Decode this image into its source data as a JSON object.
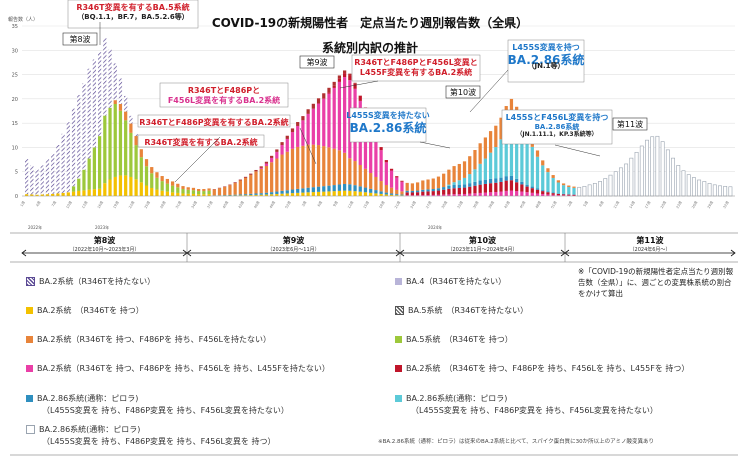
{
  "header": {
    "title": "COVID-19の新規陽性者　定点当たり週別報告数（全県）",
    "subtitle": "系統別内訳の推計",
    "ylabel": "報告数（人）"
  },
  "chart_data": {
    "type": "bar",
    "ylabel": "報告数（人）",
    "ylim": [
      0,
      35
    ],
    "yticks": [
      0,
      5,
      10,
      15,
      20,
      25,
      30,
      35
    ],
    "year_labels": [
      "2022年",
      "2023年",
      "2024年"
    ],
    "waves": [
      {
        "label": "第8波",
        "sub": "（2022年10月～2023年3月）"
      },
      {
        "label": "第9波",
        "sub": "（2023年6月～11月）"
      },
      {
        "label": "第10波",
        "sub": "（2023年11月～2024年4月）"
      },
      {
        "label": "第11波",
        "sub": "（2024年6月～）"
      }
    ],
    "wave_markers": [
      "第8波",
      "第9波",
      "第10波",
      "第11波"
    ],
    "totals": [
      7.6,
      6.3,
      5.5,
      6.3,
      7.6,
      8.7,
      10.5,
      12.8,
      15.2,
      18.0,
      20.8,
      23.2,
      26.2,
      28.1,
      29.6,
      32.5,
      30.2,
      27.3,
      24.2,
      20.6,
      16.5,
      12.8,
      9.4,
      7.2,
      5.5,
      4.4,
      3.6,
      3.0,
      2.5,
      2.1,
      1.7,
      1.5,
      1.4,
      1.2,
      1.2,
      1.3,
      1.5,
      1.8,
      2.1,
      2.5,
      3.0,
      3.6,
      4.2,
      4.9,
      5.7,
      6.5,
      7.5,
      8.8,
      10.2,
      11.8,
      13.2,
      14.8,
      16.2,
      17.5,
      19.0,
      20.2,
      21.4,
      22.5,
      23.7,
      25.0,
      26.4,
      27.5,
      26.8,
      24.8,
      22.0,
      19.3,
      16.3,
      13.5,
      10.6,
      7.8,
      5.9,
      4.3,
      3.3,
      2.7,
      2.6,
      2.8,
      3.2,
      3.4,
      3.6,
      4.0,
      4.6,
      5.4,
      6.1,
      6.5,
      7.0,
      8.0,
      9.2,
      10.5,
      11.6,
      12.8,
      13.8,
      15.3,
      17.5,
      18.8,
      17.2,
      15.3,
      13.1,
      10.9,
      8.7,
      6.8,
      5.3,
      4.0,
      3.0,
      2.4,
      2.0,
      1.8,
      1.8,
      2.0,
      2.3,
      2.6,
      3.0,
      3.6,
      4.3,
      5.0,
      5.8,
      6.6,
      7.8,
      9.0,
      10.3,
      11.5,
      12.2,
      12.3,
      11.2,
      9.5,
      7.8,
      6.3,
      5.2,
      4.4,
      3.8,
      3.3,
      3.0,
      2.6,
      2.3,
      2.1,
      2.0,
      1.9
    ],
    "categories": [
      "BA.2系統（R346Tを持たない）",
      "BA.4（R346Tを持たない）",
      "BA.2系統（R346Tを持つ）",
      "BA.5系統（R346Tを持たない）",
      "BA.2系統（R346Tを持つ、F486Pを持ち、F456Lを持たない）",
      "BA.5系統（R346Tを持つ）",
      "BA.2系統（R346Tを持つ、F486Pを持ち、F456Lを持ち、L455Fを持たない）",
      "BA.2系統（R346Tを持つ、F486Pを持ち、F456Lを持ち、L455Fを持つ）",
      "BA.2.86系統(通称：ピロラ)（L455S変異を持ち、F486P変異を持ち、F456L変異を持たない）",
      "BA.2.86系統(通称：ピロラ)（L455S変異を持ち、F486P変異を持ち、F456L変異を持たない）",
      "BA.2.86系統(通称：ピロラ)（L455S変異を持ち、F486P変異を持ち、F456L変異を持つ）"
    ]
  },
  "colors": {
    "hatch_purple": "#5b4a94",
    "ba4": "#b8b4d8",
    "ba2_r346t": "#f3c100",
    "ba5_hatch": "#555555",
    "ba2_f486p": "#e8843a",
    "ba5_r346t": "#9dc83b",
    "ba2_f456l": "#ea3fa7",
    "ba2_l455f": "#c0152a",
    "ba286_dark": "#2f8fbf",
    "ba286_light": "#5ccad8",
    "ba286_outline": "#9aa4b0",
    "callout_red": "#d01f2b",
    "callout_magenta": "#d9338f",
    "callout_blue": "#1f78c9"
  },
  "callouts": {
    "c1": {
      "a": "R346T変異を有するBA.5系統",
      "b": "（BQ.1.1，BF.7，BA.5.2.6等）"
    },
    "c2": {
      "a": "R346TとF486Pと",
      "b": "F456L変異を有するBA.2系統"
    },
    "c3": {
      "a": "R346TとF486P変異を有するBA.2系統"
    },
    "c4": {
      "a": "R346T変異を有するBA.2系統"
    },
    "c5": {
      "a": "R346TとF486PとF456L変異と",
      "b": "L455F変異を有するBA.2系統"
    },
    "c6": {
      "a": "L455S変異を持たない",
      "b": "BA.2.86系統"
    },
    "c7": {
      "a": "L455S変異を持つ",
      "b": "BA.2.86系統",
      "c": "（JN.1等）"
    },
    "c8": {
      "a": "L455SとF456L変異を持つ",
      "b": "BA.2.86系統",
      "c": "（JN.1.11.1，KP.3系統等）"
    }
  },
  "legend": {
    "items": [
      {
        "l1": "BA.2系統（R346Tを持たない）",
        "l2": ""
      },
      {
        "l1": "BA.4（R346Tを持たない）",
        "l2": ""
      },
      {
        "l1": "BA.2系統　（R346Tを 持つ）",
        "l2": ""
      },
      {
        "l1": "BA.5系統　（R346Tを持たない）",
        "l2": ""
      },
      {
        "l1": "BA.2系統（R346Tを 持つ、F486Pを 持ち、F456Lを持たない）",
        "l2": ""
      },
      {
        "l1": "BA.5系統　（R346Tを 持つ）",
        "l2": ""
      },
      {
        "l1": "BA.2系統（R346Tを 持つ、F486Pを 持ち、F456Lを 持ち、L455Fを持たない）",
        "l2": ""
      },
      {
        "l1": "BA.2系統　（R346Tを 持つ、F486Pを 持ち、F456Lを 持ち、L455Fを 持つ）",
        "l2": ""
      },
      {
        "l1": "BA.2.86系統(通称：ピロラ)",
        "l2": "（L455S変異を 持ち、F486P変異を 持ち、F456L変異を持たない）"
      },
      {
        "l1": "BA.2.86系統(通称：ピロラ)",
        "l2": "（L455S変異を 持ち、F486P変異を 持ち、F456L変異を持たない）"
      },
      {
        "l1": "BA.2.86系統(通称：ピロラ)",
        "l2": "（L455S変異を 持ち、F486P変異を 持ち、F456L変異を 持つ）"
      }
    ],
    "note": "※「COVID-19の新規陽性者定点当たり週別報告数（全県）」に、週ごとの変異株系統の割合をかけて算出",
    "footnote": "※BA.2.86系統（通称：ピロラ）は従来のBA.2系統と比べて、スパイク蛋白質に30か所以上のアミノ酸変異あり"
  }
}
